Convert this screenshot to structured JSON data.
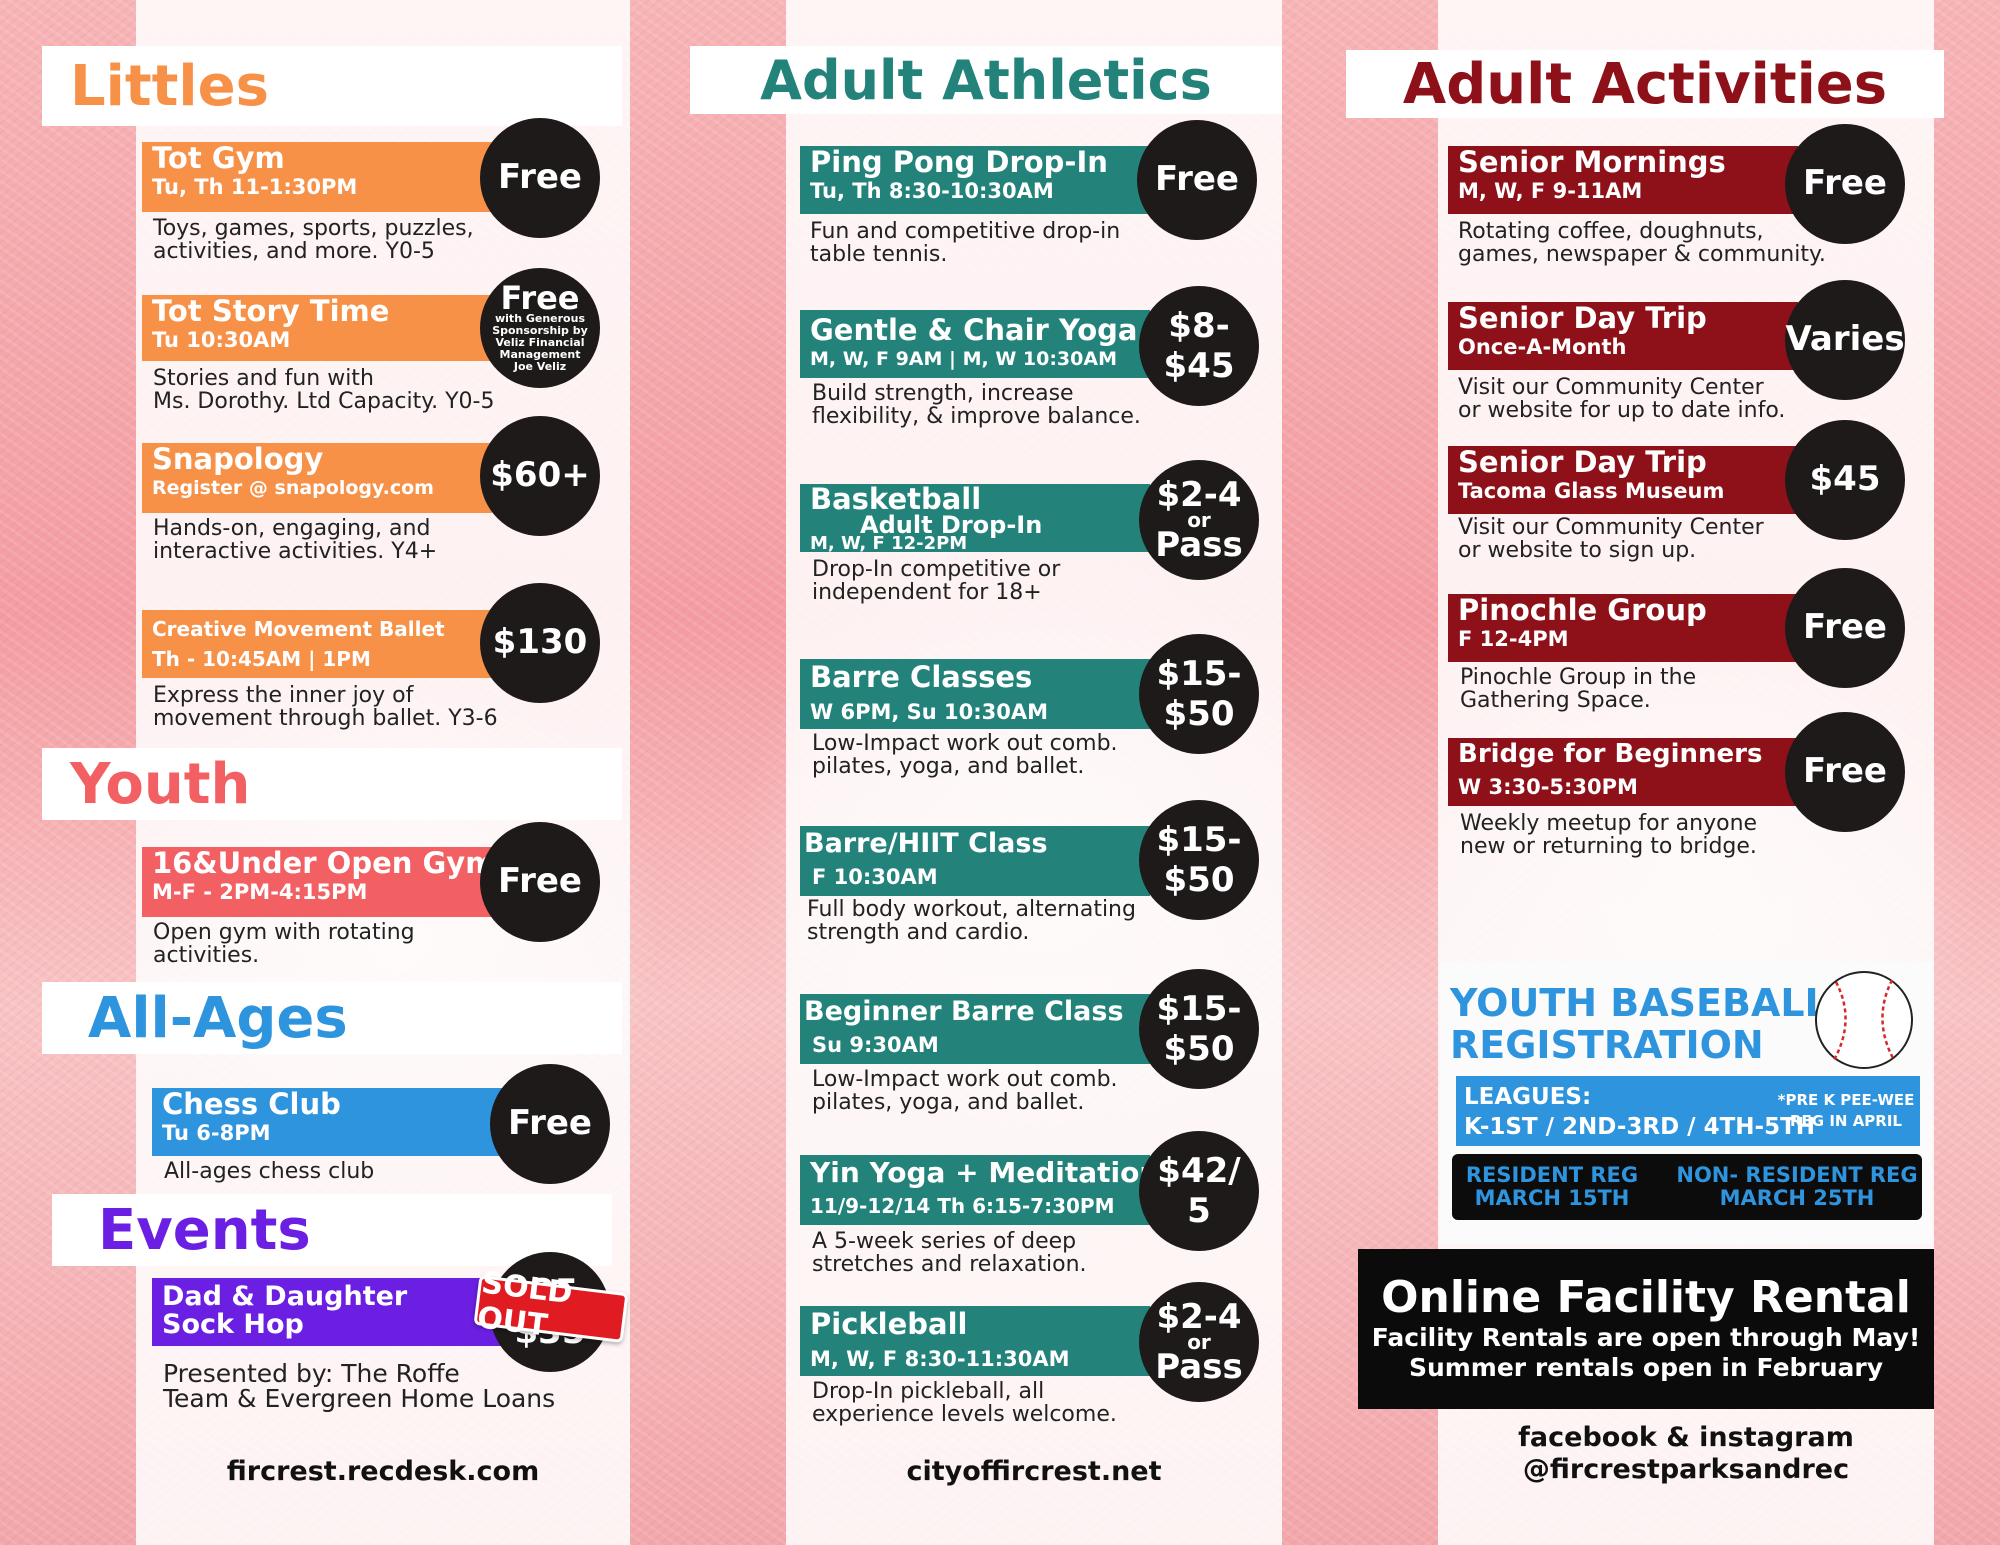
{
  "colors": {
    "littles": "#f79148",
    "youth": "#f26063",
    "all_ages": "#2f94de",
    "events": "#6b1fe3",
    "adult_athletics": "#23837a",
    "adult_activities": "#8e1119",
    "price_circle": "#1e1a1a",
    "sold_out": "#e11b22"
  },
  "littles": {
    "title": "Littles",
    "items": [
      {
        "name": "Tot Gym",
        "sub": "Tu, Th 11-1:30PM",
        "price": "Free",
        "desc1": "Toys, games, sports, puzzles,",
        "desc2": "activities, and more. Y0-5"
      },
      {
        "name": "Tot Story Time",
        "sub": "Tu 10:30AM",
        "price": "Free",
        "sponsor1": "with Generous",
        "sponsor2": "Sponsorship by",
        "sponsor3": "Veliz Financial",
        "sponsor4": "Management",
        "sponsor5": "Joe Veliz",
        "desc1": "Stories and fun with",
        "desc2": "Ms. Dorothy. Ltd Capacity. Y0-5"
      },
      {
        "name": "Snapology",
        "sub": "Register @ snapology.com",
        "price": "$60+",
        "desc1": "Hands-on, engaging, and",
        "desc2": "interactive activities. Y4+"
      },
      {
        "name": "Creative Movement Ballet",
        "sub": "Th - 10:45AM | 1PM",
        "price": "$130",
        "desc1": "Express the inner joy of",
        "desc2": "movement through ballet. Y3-6"
      }
    ]
  },
  "youth": {
    "title": "Youth",
    "items": [
      {
        "name": "16&Under Open Gym",
        "sub": "M-F - 2PM-4:15PM",
        "price": "Free",
        "desc1": "Open gym with rotating",
        "desc2": "activities."
      }
    ]
  },
  "all_ages": {
    "title": "All-Ages",
    "items": [
      {
        "name": "Chess Club",
        "sub": "Tu 6-8PM",
        "price": "Free",
        "desc1": "All-ages chess club"
      }
    ]
  },
  "events": {
    "title": "Events",
    "items": [
      {
        "name1": "Dad & Daughter",
        "name2": "Sock Hop",
        "price1": "$25-",
        "price2": "$35",
        "badge": "SOLD OUT",
        "desc1": "Presented by: The Roffe",
        "desc2": "Team & Evergreen Home Loans"
      }
    ]
  },
  "adult_athletics": {
    "title": "Adult Athletics",
    "items": [
      {
        "name": "Ping Pong Drop-In",
        "sub": "Tu, Th 8:30-10:30AM",
        "price": "Free",
        "desc1": "Fun and competitive drop-in",
        "desc2": "table tennis."
      },
      {
        "name": "Gentle & Chair Yoga",
        "sub": "M, W, F 9AM | M, W 10:30AM",
        "price1": "$8-",
        "price2": "$45",
        "desc1": "Build strength, increase",
        "desc2": "flexibility, & improve balance."
      },
      {
        "name": "Basketball",
        "sub1": "Adult Drop-In",
        "sub2": "M, W, F 12-2PM",
        "price1": "$2-4",
        "or": "or",
        "price2": "Pass",
        "desc1": "Drop-In competitive or",
        "desc2": "independent for 18+"
      },
      {
        "name": "Barre Classes",
        "sub": "W 6PM, Su 10:30AM",
        "price1": "$15-",
        "price2": "$50",
        "desc1": "Low-Impact work out comb.",
        "desc2": "pilates, yoga, and ballet."
      },
      {
        "name": "Barre/HIIT Class",
        "sub": "F 10:30AM",
        "price1": "$15-",
        "price2": "$50",
        "desc1": "Full body workout, alternating",
        "desc2": "strength and cardio."
      },
      {
        "name": "Beginner Barre Class",
        "sub": "Su 9:30AM",
        "price1": "$15-",
        "price2": "$50",
        "desc1": "Low-Impact work out comb.",
        "desc2": "pilates, yoga, and ballet."
      },
      {
        "name": "Yin Yoga + Meditation",
        "sub": "11/9-12/14 Th 6:15-7:30PM",
        "price1": "$42/",
        "price2": "5",
        "desc1": "A 5-week series of deep",
        "desc2": "stretches and relaxation."
      },
      {
        "name": "Pickleball",
        "sub": "M, W, F 8:30-11:30AM",
        "price1": "$2-4",
        "or": "or",
        "price2": "Pass",
        "desc1": "Drop-In pickleball, all",
        "desc2": "experience levels welcome."
      }
    ]
  },
  "adult_activities": {
    "title": "Adult Activities",
    "items": [
      {
        "name": "Senior Mornings",
        "sub": "M, W, F 9-11AM",
        "price": "Free",
        "desc1": "Rotating coffee, doughnuts,",
        "desc2": "games, newspaper & community."
      },
      {
        "name": "Senior Day Trip",
        "sub": "Once-A-Month",
        "price": "Varies",
        "desc1": "Visit our Community Center",
        "desc2": "or website for up to date info."
      },
      {
        "name": "Senior Day Trip",
        "sub": "Tacoma Glass Museum",
        "price": "$45",
        "desc1": "Visit our Community Center",
        "desc2": "or website to sign up."
      },
      {
        "name": "Pinochle Group",
        "sub": "F 12-4PM",
        "price": "Free",
        "desc1": "Pinochle Group in the",
        "desc2": "Gathering Space."
      },
      {
        "name": "Bridge for Beginners",
        "sub": "W 3:30-5:30PM",
        "price": "Free",
        "desc1": "Weekly meetup for anyone",
        "desc2": "new or returning to bridge."
      }
    ]
  },
  "baseball": {
    "title1": "YOUTH BASEBALL",
    "title2": "REGISTRATION",
    "leagues_label": "LEAGUES:",
    "leagues": "K-1ST / 2ND-3RD / 4TH-5TH",
    "note1": "*PRE K PEE-WEE",
    "note2": "REG IN APRIL",
    "resident1": "RESIDENT REG",
    "resident2": "MARCH 15TH",
    "nonresident1": "NON- RESIDENT REG",
    "nonresident2": "MARCH 25TH"
  },
  "rental": {
    "title": "Online Facility Rental",
    "line1": "Facility Rentals are open through May!",
    "line2": "Summer rentals open in February"
  },
  "footer": {
    "left": "fircrest.recdesk.com",
    "middle": "cityoffircrest.net",
    "right1": "facebook & instagram",
    "right2": "@fircrestparksandrec"
  }
}
